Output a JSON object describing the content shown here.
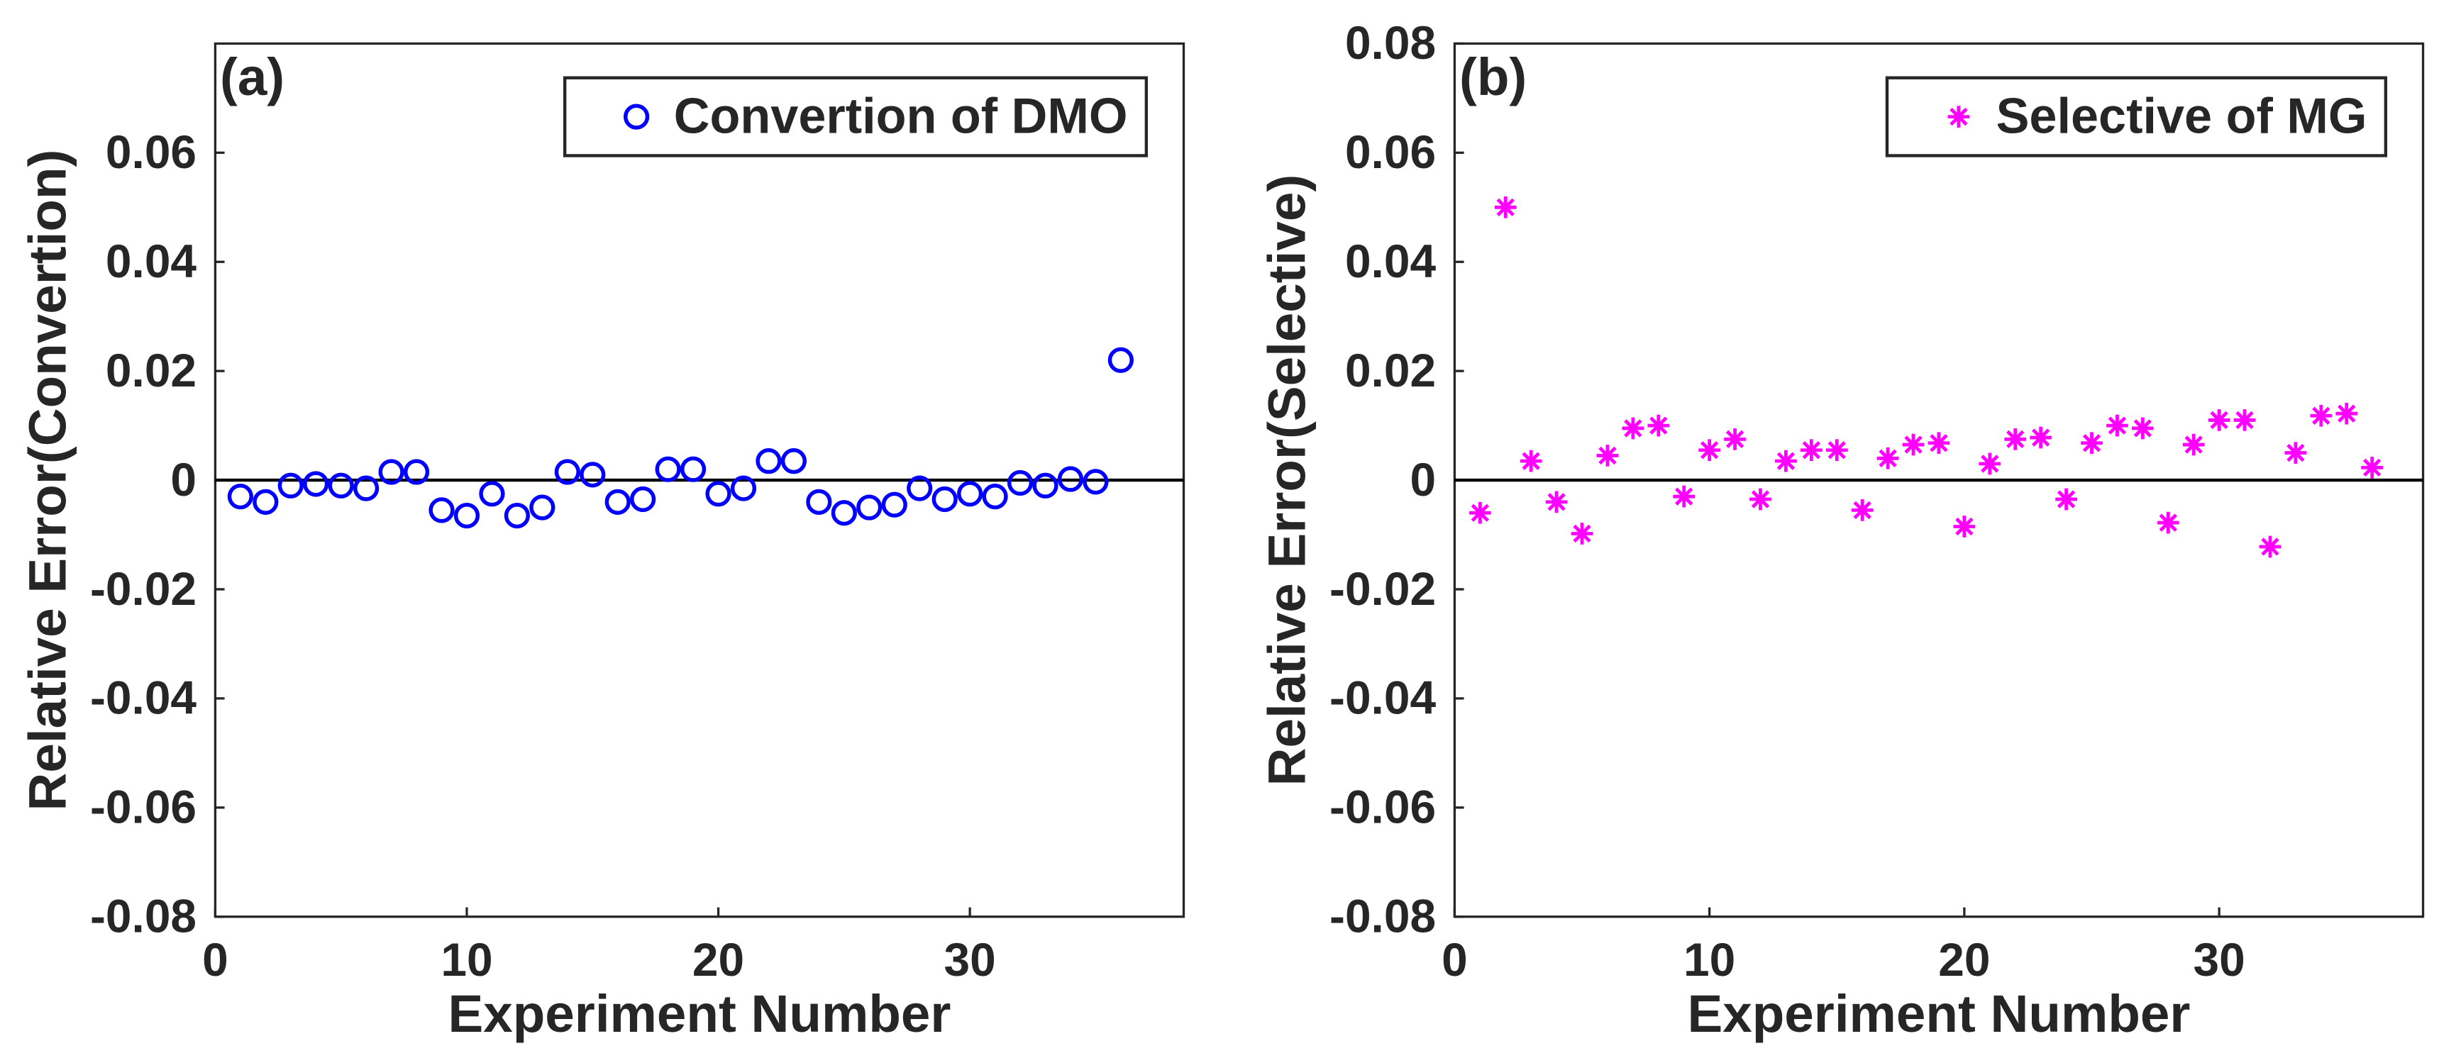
{
  "chart_data": [
    {
      "type": "scatter",
      "annotation": "(a)",
      "xlabel": "Experiment Number",
      "ylabel": "Relative Error(Convertion)",
      "x": [
        1,
        2,
        3,
        4,
        5,
        6,
        7,
        8,
        9,
        10,
        11,
        12,
        13,
        14,
        15,
        16,
        17,
        18,
        19,
        20,
        21,
        22,
        23,
        24,
        25,
        26,
        27,
        28,
        29,
        30,
        31,
        32,
        33,
        34,
        35,
        36
      ],
      "series": [
        {
          "name": "Convertion of DMO",
          "color": "#0000ff",
          "marker": "o",
          "values": [
            -0.003,
            -0.004,
            -0.001,
            -0.0007,
            -0.001,
            -0.0015,
            0.0015,
            0.0015,
            -0.0055,
            -0.0065,
            -0.0025,
            -0.0065,
            -0.005,
            0.0015,
            0.001,
            -0.004,
            -0.0035,
            0.002,
            0.002,
            -0.0025,
            -0.0015,
            0.0035,
            0.0035,
            -0.004,
            -0.006,
            -0.005,
            -0.0045,
            -0.0015,
            -0.0035,
            -0.0025,
            -0.003,
            -0.0005,
            -0.001,
            0.0002,
            -0.0003,
            0.022
          ]
        }
      ],
      "xlim": [
        0,
        38.5
      ],
      "xticks": [
        0,
        10,
        20,
        30
      ],
      "ylim": [
        -0.08,
        0.08
      ],
      "yticks": [
        -0.08,
        -0.06,
        -0.04,
        -0.02,
        0,
        0.02,
        0.04,
        0.06
      ],
      "legend": "northeast"
    },
    {
      "type": "scatter",
      "annotation": "(b)",
      "xlabel": "Experiment Number",
      "ylabel": "Relative Error(Selective)",
      "x": [
        1,
        2,
        3,
        4,
        5,
        6,
        7,
        8,
        9,
        10,
        11,
        12,
        13,
        14,
        15,
        16,
        17,
        18,
        19,
        20,
        21,
        22,
        23,
        24,
        25,
        26,
        27,
        28,
        29,
        30,
        31,
        32,
        33,
        34,
        35,
        36
      ],
      "series": [
        {
          "name": "Selective of MG",
          "color": "#ff00ff",
          "marker": "*",
          "values": [
            -0.006,
            0.05,
            0.0035,
            -0.004,
            -0.0098,
            0.0045,
            0.0095,
            0.01,
            -0.003,
            0.0055,
            0.0075,
            -0.0035,
            0.0035,
            0.0055,
            0.0055,
            -0.0055,
            0.004,
            0.0065,
            0.0068,
            -0.0085,
            0.003,
            0.0075,
            0.0078,
            -0.0035,
            0.0068,
            0.01,
            0.0095,
            -0.0078,
            0.0065,
            0.011,
            0.011,
            -0.0122,
            0.005,
            0.0118,
            0.0122,
            0.0023
          ]
        }
      ],
      "xlim": [
        0,
        38
      ],
      "xticks": [
        0,
        10,
        20,
        30
      ],
      "ylim": [
        -0.08,
        0.08
      ],
      "yticks": [
        -0.08,
        -0.06,
        -0.04,
        -0.02,
        0,
        0.02,
        0.04,
        0.06,
        0.08
      ],
      "legend": "northeast"
    }
  ]
}
